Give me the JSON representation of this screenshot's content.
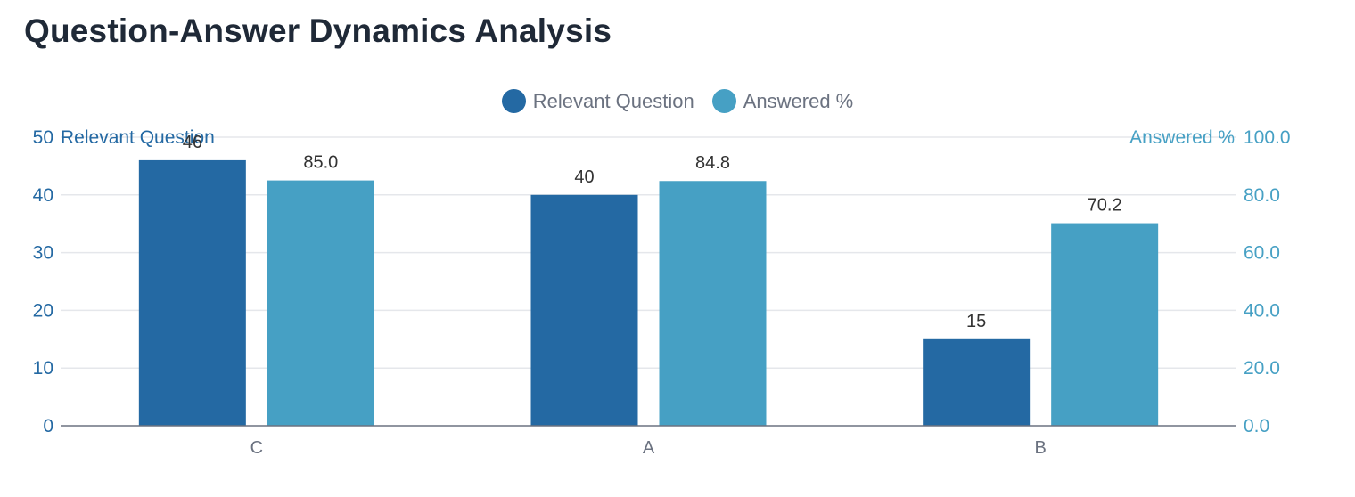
{
  "chart_data": {
    "type": "bar",
    "title": "Question-Answer Dynamics Analysis",
    "categories": [
      "C",
      "A",
      "B"
    ],
    "series": [
      {
        "name": "Relevant Question",
        "axis": "left",
        "color": "#2469a3",
        "values": [
          46,
          40,
          15
        ],
        "labels": [
          "46",
          "40",
          "15"
        ]
      },
      {
        "name": "Answered %",
        "axis": "right",
        "color": "#46a0c4",
        "values": [
          85.0,
          84.8,
          70.2
        ],
        "labels": [
          "85.0",
          "84.8",
          "70.2"
        ]
      }
    ],
    "y_left": {
      "label": "Relevant Question",
      "min": 0,
      "max": 50,
      "ticks": [
        "0",
        "10",
        "20",
        "30",
        "40",
        "50"
      ],
      "color": "#2469a3"
    },
    "y_right": {
      "label": "Answered %",
      "min": 0,
      "max": 100,
      "ticks": [
        "0.0",
        "20.0",
        "40.0",
        "60.0",
        "80.0",
        "100.0"
      ],
      "color": "#46a0c4"
    },
    "legend_position": "top-center",
    "grid": true
  }
}
